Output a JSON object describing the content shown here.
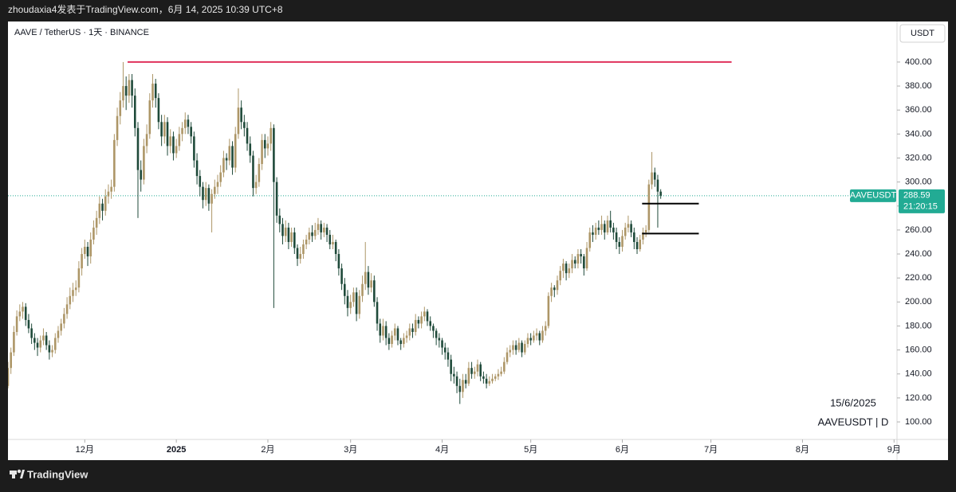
{
  "header": "zhoudaxia4发表于TradingView.com，6月 14, 2025 10:39 UTC+8",
  "footer": "TradingView",
  "chart_data": {
    "type": "candlestick",
    "symbol_label": "AAVE / TetherUS · 1天 · BINANCE",
    "currency": "USDT",
    "price_tag": "AAVEUSDT",
    "countdown": "21:20:15",
    "watermark_date": "15/6/2025",
    "watermark_symbol": "AAVEUSDT | D",
    "up_color": "#ad9667",
    "down_color": "#1f4a3a",
    "price_line_color": "#22ab94",
    "xlim": [
      0,
      301
    ],
    "xticks": [
      {
        "value": 26,
        "label": "12月"
      },
      {
        "value": 57,
        "label": "2025"
      },
      {
        "value": 88,
        "label": "2月"
      },
      {
        "value": 116,
        "label": "3月"
      },
      {
        "value": 147,
        "label": "4月"
      },
      {
        "value": 177,
        "label": "5月"
      },
      {
        "value": 208,
        "label": "6月"
      },
      {
        "value": 238,
        "label": "7月"
      },
      {
        "value": 269,
        "label": "8月"
      },
      {
        "value": 300,
        "label": "9月"
      }
    ],
    "ylim": [
      85.4,
      433.8
    ],
    "yticks": [
      {
        "value": 100,
        "label": "100.00"
      },
      {
        "value": 120,
        "label": "120.00"
      },
      {
        "value": 140,
        "label": "140.00"
      },
      {
        "value": 160,
        "label": "160.00"
      },
      {
        "value": 180,
        "label": "180.00"
      },
      {
        "value": 200,
        "label": "200.00"
      },
      {
        "value": 220,
        "label": "220.00"
      },
      {
        "value": 240,
        "label": "240.00"
      },
      {
        "value": 260,
        "label": "260.00"
      },
      {
        "value": 280,
        "label": "280.00"
      },
      {
        "value": 300,
        "label": "300.00"
      },
      {
        "value": 320,
        "label": "320.00"
      },
      {
        "value": 340,
        "label": "340.00"
      },
      {
        "value": 360,
        "label": "360.00"
      },
      {
        "value": 380,
        "label": "380.00"
      },
      {
        "value": 400,
        "label": "400.00"
      }
    ],
    "lines": [
      {
        "y": 400,
        "x": [
          40.5,
          245
        ],
        "color": "#e0315b"
      },
      {
        "y": 282,
        "x": [
          214.7,
          233.9
        ],
        "color": "#000000"
      },
      {
        "y": 257,
        "x": [
          214.7,
          233.9
        ],
        "color": "#000000"
      }
    ],
    "candles": [
      [
        130,
        150,
        128,
        145
      ],
      [
        145,
        162,
        140,
        158
      ],
      [
        158,
        180,
        155,
        175
      ],
      [
        175,
        193,
        172,
        188
      ],
      [
        188,
        198,
        184,
        192
      ],
      [
        192,
        200,
        186,
        196
      ],
      [
        196,
        199,
        180,
        185
      ],
      [
        185,
        190,
        174,
        178
      ],
      [
        178,
        182,
        165,
        170
      ],
      [
        170,
        174,
        160,
        166
      ],
      [
        166,
        170,
        155,
        162
      ],
      [
        162,
        172,
        158,
        168
      ],
      [
        168,
        178,
        164,
        172
      ],
      [
        172,
        175,
        160,
        164
      ],
      [
        164,
        168,
        152,
        158
      ],
      [
        158,
        164,
        154,
        160
      ],
      [
        160,
        174,
        157,
        170
      ],
      [
        170,
        180,
        166,
        176
      ],
      [
        176,
        186,
        172,
        182
      ],
      [
        182,
        195,
        178,
        190
      ],
      [
        190,
        204,
        186,
        198
      ],
      [
        198,
        212,
        194,
        205
      ],
      [
        205,
        216,
        200,
        210
      ],
      [
        210,
        218,
        205,
        212
      ],
      [
        212,
        234,
        208,
        228
      ],
      [
        228,
        245,
        222,
        240
      ],
      [
        240,
        252,
        236,
        246
      ],
      [
        246,
        250,
        230,
        238
      ],
      [
        238,
        258,
        232,
        252
      ],
      [
        252,
        268,
        248,
        262
      ],
      [
        262,
        276,
        256,
        270
      ],
      [
        270,
        288,
        265,
        282
      ],
      [
        282,
        286,
        268,
        276
      ],
      [
        276,
        294,
        272,
        288
      ],
      [
        288,
        298,
        282,
        292
      ],
      [
        292,
        302,
        286,
        296
      ],
      [
        296,
        340,
        292,
        335
      ],
      [
        335,
        362,
        330,
        355
      ],
      [
        355,
        375,
        348,
        368
      ],
      [
        368,
        400,
        362,
        380
      ],
      [
        380,
        388,
        360,
        372
      ],
      [
        372,
        390,
        366,
        385
      ],
      [
        385,
        390,
        362,
        372
      ],
      [
        372,
        378,
        338,
        345
      ],
      [
        345,
        350,
        270,
        310
      ],
      [
        310,
        318,
        292,
        302
      ],
      [
        302,
        336,
        298,
        330
      ],
      [
        330,
        348,
        324,
        340
      ],
      [
        340,
        374,
        336,
        368
      ],
      [
        368,
        390,
        362,
        382
      ],
      [
        382,
        386,
        362,
        370
      ],
      [
        370,
        374,
        344,
        350
      ],
      [
        350,
        356,
        330,
        338
      ],
      [
        338,
        356,
        332,
        350
      ],
      [
        350,
        354,
        322,
        330
      ],
      [
        330,
        344,
        324,
        338
      ],
      [
        338,
        342,
        318,
        324
      ],
      [
        324,
        336,
        320,
        330
      ],
      [
        330,
        346,
        326,
        340
      ],
      [
        340,
        350,
        334,
        345
      ],
      [
        345,
        358,
        340,
        352
      ],
      [
        352,
        356,
        340,
        346
      ],
      [
        346,
        350,
        332,
        338
      ],
      [
        338,
        342,
        312,
        318
      ],
      [
        318,
        324,
        298,
        305
      ],
      [
        305,
        310,
        288,
        296
      ],
      [
        296,
        300,
        278,
        285
      ],
      [
        285,
        300,
        280,
        295
      ],
      [
        295,
        298,
        276,
        282
      ],
      [
        282,
        294,
        258,
        290
      ],
      [
        290,
        302,
        286,
        296
      ],
      [
        296,
        306,
        290,
        300
      ],
      [
        300,
        314,
        296,
        308
      ],
      [
        308,
        326,
        304,
        320
      ],
      [
        320,
        324,
        310,
        318
      ],
      [
        318,
        336,
        314,
        330
      ],
      [
        330,
        334,
        306,
        312
      ],
      [
        312,
        346,
        308,
        340
      ],
      [
        340,
        378,
        336,
        362
      ],
      [
        362,
        368,
        344,
        350
      ],
      [
        350,
        356,
        338,
        345
      ],
      [
        345,
        350,
        326,
        332
      ],
      [
        332,
        338,
        316,
        322
      ],
      [
        322,
        326,
        288,
        295
      ],
      [
        295,
        306,
        290,
        300
      ],
      [
        300,
        320,
        296,
        315
      ],
      [
        315,
        340,
        310,
        335
      ],
      [
        335,
        340,
        320,
        328
      ],
      [
        328,
        338,
        322,
        332
      ],
      [
        332,
        350,
        326,
        345
      ],
      [
        345,
        348,
        195,
        300
      ],
      [
        300,
        304,
        266,
        272
      ],
      [
        272,
        278,
        258,
        265
      ],
      [
        265,
        270,
        248,
        255
      ],
      [
        255,
        268,
        250,
        262
      ],
      [
        262,
        266,
        244,
        250
      ],
      [
        250,
        262,
        246,
        258
      ],
      [
        258,
        262,
        240,
        245
      ],
      [
        245,
        248,
        230,
        236
      ],
      [
        236,
        246,
        232,
        240
      ],
      [
        240,
        252,
        236,
        248
      ],
      [
        248,
        256,
        244,
        252
      ],
      [
        252,
        262,
        248,
        258
      ],
      [
        258,
        264,
        250,
        255
      ],
      [
        255,
        266,
        252,
        260
      ],
      [
        260,
        270,
        256,
        265
      ],
      [
        265,
        268,
        252,
        258
      ],
      [
        258,
        266,
        254,
        262
      ],
      [
        262,
        265,
        250,
        256
      ],
      [
        256,
        260,
        244,
        248
      ],
      [
        248,
        256,
        244,
        250
      ],
      [
        250,
        252,
        234,
        240
      ],
      [
        240,
        244,
        222,
        228
      ],
      [
        228,
        232,
        210,
        215
      ],
      [
        215,
        220,
        198,
        205
      ],
      [
        205,
        210,
        188,
        195
      ],
      [
        195,
        206,
        190,
        200
      ],
      [
        200,
        212,
        196,
        208
      ],
      [
        208,
        212,
        184,
        190
      ],
      [
        190,
        210,
        186,
        205
      ],
      [
        205,
        222,
        200,
        215
      ],
      [
        215,
        250,
        210,
        225
      ],
      [
        225,
        230,
        206,
        212
      ],
      [
        212,
        224,
        208,
        218
      ],
      [
        218,
        222,
        196,
        200
      ],
      [
        200,
        204,
        176,
        182
      ],
      [
        182,
        186,
        166,
        172
      ],
      [
        172,
        186,
        168,
        180
      ],
      [
        180,
        184,
        164,
        170
      ],
      [
        170,
        174,
        160,
        165
      ],
      [
        165,
        176,
        162,
        172
      ],
      [
        172,
        182,
        168,
        178
      ],
      [
        178,
        180,
        164,
        168
      ],
      [
        168,
        170,
        160,
        165
      ],
      [
        165,
        174,
        162,
        170
      ],
      [
        170,
        176,
        166,
        172
      ],
      [
        172,
        182,
        168,
        178
      ],
      [
        178,
        182,
        170,
        175
      ],
      [
        175,
        190,
        172,
        185
      ],
      [
        185,
        188,
        178,
        182
      ],
      [
        182,
        192,
        178,
        188
      ],
      [
        188,
        196,
        184,
        192
      ],
      [
        192,
        194,
        180,
        184
      ],
      [
        184,
        188,
        176,
        180
      ],
      [
        180,
        182,
        170,
        176
      ],
      [
        176,
        178,
        164,
        170
      ],
      [
        170,
        174,
        162,
        168
      ],
      [
        168,
        170,
        156,
        162
      ],
      [
        162,
        166,
        152,
        158
      ],
      [
        158,
        162,
        146,
        152
      ],
      [
        152,
        156,
        134,
        140
      ],
      [
        140,
        146,
        132,
        138
      ],
      [
        138,
        142,
        124,
        130
      ],
      [
        130,
        136,
        115,
        125
      ],
      [
        125,
        140,
        120,
        135
      ],
      [
        135,
        140,
        128,
        132
      ],
      [
        132,
        150,
        130,
        145
      ],
      [
        145,
        150,
        136,
        140
      ],
      [
        140,
        146,
        136,
        142
      ],
      [
        142,
        152,
        138,
        148
      ],
      [
        148,
        150,
        134,
        138
      ],
      [
        138,
        142,
        132,
        136
      ],
      [
        136,
        140,
        128,
        132
      ],
      [
        132,
        138,
        130,
        134
      ],
      [
        134,
        140,
        132,
        136
      ],
      [
        136,
        140,
        134,
        138
      ],
      [
        138,
        144,
        135,
        140
      ],
      [
        140,
        146,
        138,
        142
      ],
      [
        142,
        154,
        140,
        150
      ],
      [
        150,
        162,
        148,
        158
      ],
      [
        158,
        164,
        154,
        160
      ],
      [
        160,
        168,
        156,
        164
      ],
      [
        164,
        168,
        156,
        160
      ],
      [
        160,
        170,
        158,
        166
      ],
      [
        166,
        168,
        154,
        158
      ],
      [
        158,
        168,
        156,
        165
      ],
      [
        165,
        174,
        162,
        170
      ],
      [
        170,
        174,
        164,
        168
      ],
      [
        168,
        176,
        166,
        172
      ],
      [
        172,
        178,
        168,
        174
      ],
      [
        174,
        176,
        164,
        168
      ],
      [
        168,
        180,
        166,
        176
      ],
      [
        176,
        184,
        172,
        180
      ],
      [
        180,
        208,
        178,
        205
      ],
      [
        205,
        216,
        200,
        212
      ],
      [
        212,
        214,
        204,
        210
      ],
      [
        210,
        222,
        206,
        218
      ],
      [
        218,
        230,
        214,
        226
      ],
      [
        226,
        236,
        220,
        232
      ],
      [
        232,
        234,
        218,
        224
      ],
      [
        224,
        232,
        220,
        228
      ],
      [
        228,
        240,
        224,
        235
      ],
      [
        235,
        238,
        228,
        232
      ],
      [
        232,
        244,
        228,
        240
      ],
      [
        240,
        244,
        232,
        238
      ],
      [
        238,
        240,
        222,
        228
      ],
      [
        228,
        250,
        226,
        245
      ],
      [
        245,
        262,
        242,
        258
      ],
      [
        258,
        264,
        250,
        256
      ],
      [
        256,
        266,
        252,
        262
      ],
      [
        262,
        268,
        256,
        260
      ],
      [
        260,
        272,
        256,
        265
      ],
      [
        265,
        268,
        252,
        258
      ],
      [
        258,
        272,
        256,
        268
      ],
      [
        268,
        276,
        258,
        262
      ],
      [
        262,
        266,
        252,
        258
      ],
      [
        258,
        262,
        244,
        250
      ],
      [
        250,
        254,
        240,
        246
      ],
      [
        246,
        260,
        242,
        255
      ],
      [
        255,
        266,
        252,
        262
      ],
      [
        262,
        272,
        258,
        265
      ],
      [
        265,
        268,
        254,
        258
      ],
      [
        258,
        262,
        244,
        250
      ],
      [
        250,
        254,
        240,
        244
      ],
      [
        244,
        256,
        242,
        252
      ],
      [
        252,
        262,
        248,
        258
      ],
      [
        258,
        264,
        254,
        260
      ],
      [
        260,
        302,
        258,
        298
      ],
      [
        298,
        325,
        294,
        308
      ],
      [
        308,
        312,
        296,
        302
      ],
      [
        302,
        306,
        262,
        292
      ],
      [
        292,
        294,
        286,
        288.59
      ]
    ]
  }
}
